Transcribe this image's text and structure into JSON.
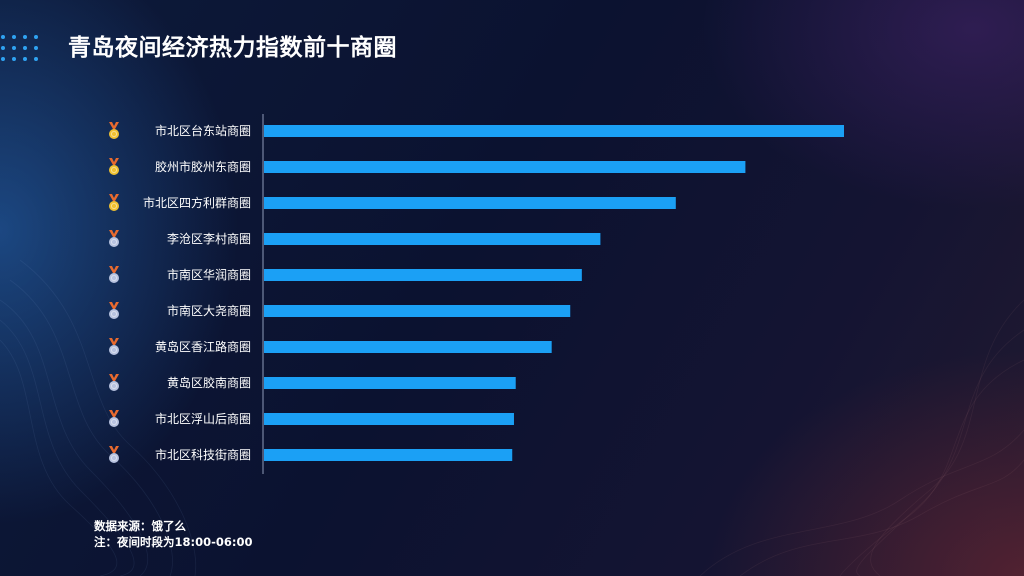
{
  "title": "青岛夜间经济热力指数前十商圈",
  "colors": {
    "bar": "#1ba0f5",
    "medal_gold": "#f1c232",
    "medal_silver": "#b8c3e0",
    "ribbon": "#e86a2e"
  },
  "chart_data": {
    "type": "bar",
    "orientation": "horizontal",
    "categories": [
      "市北区台东站商圈",
      "胶州市胶州东商圈",
      "市北区四方利群商圈",
      "李沧区李村商圈",
      "市南区华润商圈",
      "市南区大尧商圈",
      "黄岛区香江路商圈",
      "黄岛区胶南商圈",
      "市北区浮山后商圈",
      "市北区科技街商圈"
    ],
    "values": [
      100,
      83,
      71,
      58,
      54.8,
      52.8,
      49.6,
      43.4,
      43.1,
      42.8
    ],
    "medals": [
      "gold-medal-icon",
      "gold-medal-icon",
      "gold-medal-icon",
      "silver-medal-icon",
      "silver-medal-icon",
      "silver-medal-icon",
      "silver-medal-icon",
      "silver-medal-icon",
      "silver-medal-icon",
      "silver-medal-icon"
    ],
    "xlim": [
      0,
      100
    ],
    "axis_visible": false,
    "grid": false
  },
  "footnote": {
    "source": "数据来源：饿了么",
    "note": "注：夜间时段为18:00-06:00"
  }
}
